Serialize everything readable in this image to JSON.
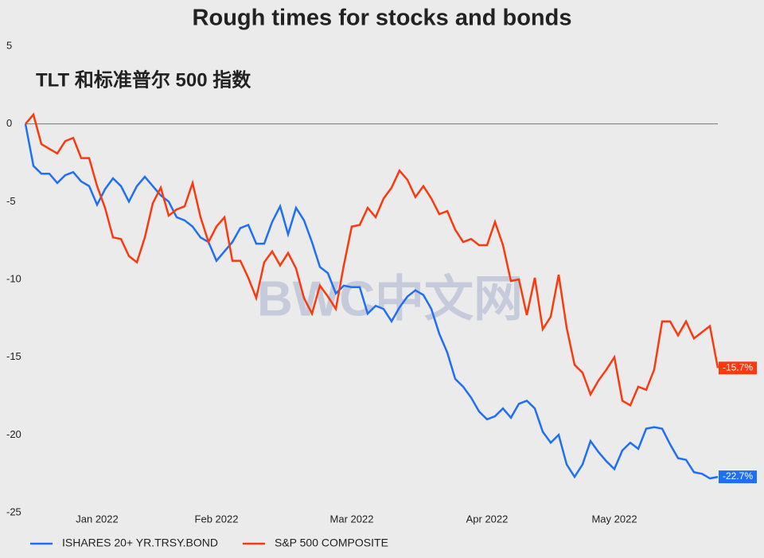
{
  "chart_data": {
    "type": "line",
    "title": "Rough times for stocks and bonds",
    "subtitle": "TLT 和标准普尔 500 指数",
    "watermark": "BWC中文网",
    "categories": [
      null,
      null,
      null,
      null,
      null,
      null,
      null,
      null,
      null,
      "Jan 2022",
      null,
      null,
      null,
      null,
      null,
      null,
      null,
      null,
      null,
      null,
      null,
      null,
      null,
      null,
      "Feb 2022",
      null,
      null,
      null,
      null,
      null,
      null,
      null,
      null,
      null,
      null,
      null,
      null,
      null,
      null,
      null,
      null,
      "Mar 2022",
      null,
      null,
      null,
      null,
      null,
      null,
      null,
      null,
      null,
      null,
      null,
      null,
      null,
      null,
      null,
      null,
      "Apr 2022",
      null,
      null,
      null,
      null,
      null,
      null,
      null,
      null,
      null,
      null,
      null,
      null,
      null,
      null,
      null,
      "May 2022",
      null,
      null,
      null,
      null,
      null,
      null,
      null,
      null,
      null,
      null,
      null,
      null,
      null
    ],
    "series": [
      {
        "name": "ISHARES 20+ YR.TRSY.BOND",
        "color": "#1f6ff5",
        "end_label": "-22.7%",
        "values": [
          0,
          -2.7,
          -3.2,
          -3.2,
          -3.8,
          -3.3,
          -3.1,
          -3.7,
          -4.0,
          -5.2,
          -4.2,
          -3.5,
          -4.0,
          -5.0,
          -4.0,
          -3.4,
          -4.0,
          -4.6,
          -5.0,
          -6.0,
          -6.2,
          -6.6,
          -7.3,
          -7.6,
          -8.8,
          -8.2,
          -7.6,
          -6.7,
          -6.5,
          -7.7,
          -7.7,
          -6.3,
          -5.3,
          -7.1,
          -5.4,
          -6.2,
          -7.6,
          -9.2,
          -9.6,
          -10.9,
          -10.4,
          -10.5,
          -10.5,
          -12.2,
          -11.7,
          -11.9,
          -12.7,
          -11.8,
          -11.1,
          -10.7,
          -11.0,
          -11.9,
          -13.5,
          -14.7,
          -16.4,
          -16.9,
          -17.6,
          -18.5,
          -19.0,
          -18.8,
          -18.3,
          -18.9,
          -18.0,
          -17.8,
          -18.3,
          -19.8,
          -20.5,
          -20.0,
          -21.9,
          -22.7,
          -21.9,
          -20.4,
          -21.1,
          -21.7,
          -22.2,
          -21.0,
          -20.5,
          -20.9,
          -19.6,
          -19.5,
          -19.6,
          -20.6,
          -21.5,
          -21.6,
          -22.4,
          -22.5,
          -22.8,
          -22.7
        ]
      },
      {
        "name": "S&P 500 COMPOSITE",
        "color": "#fa3a0e",
        "end_label": "-15.7%",
        "values": [
          0,
          0.6,
          -1.3,
          -1.6,
          -1.9,
          -1.1,
          -0.9,
          -2.2,
          -2.2,
          -4.0,
          -5.4,
          -7.3,
          -7.4,
          -8.5,
          -8.9,
          -7.3,
          -5.1,
          -4.1,
          -5.9,
          -5.5,
          -5.3,
          -3.8,
          -6.0,
          -7.6,
          -6.6,
          -6.0,
          -8.8,
          -8.8,
          -9.9,
          -11.2,
          -8.9,
          -8.2,
          -9.1,
          -8.3,
          -9.3,
          -11.2,
          -12.2,
          -10.4,
          -11.1,
          -11.9,
          -9.1,
          -6.6,
          -6.5,
          -5.4,
          -6.0,
          -4.8,
          -4.1,
          -3.0,
          -3.6,
          -4.7,
          -4.0,
          -4.8,
          -5.8,
          -5.6,
          -6.8,
          -7.6,
          -7.4,
          -7.8,
          -7.8,
          -6.3,
          -7.8,
          -10.1,
          -10.0,
          -12.3,
          -9.9,
          -13.2,
          -12.4,
          -9.7,
          -13.1,
          -15.5,
          -16.0,
          -17.4,
          -16.5,
          -15.8,
          -15.0,
          -17.8,
          -18.1,
          -16.9,
          -17.1,
          -15.8,
          -12.7,
          -12.7,
          -13.6,
          -12.7,
          -13.8,
          -13.4,
          -13.0,
          -15.7
        ]
      }
    ],
    "ylim": [
      -25,
      5
    ],
    "yticks": [
      5,
      0,
      -5,
      -10,
      -15,
      -20,
      -25
    ],
    "zero_line": true,
    "legend": "bottom"
  }
}
